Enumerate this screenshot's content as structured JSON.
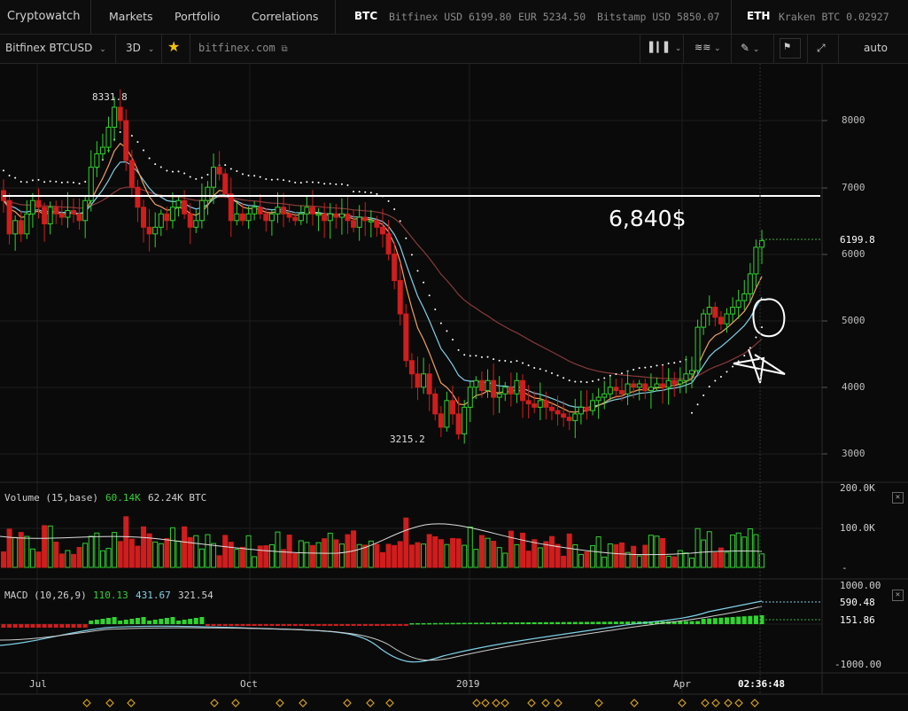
{
  "header": {
    "brand": "Cryptowatch",
    "nav": [
      "Markets",
      "Portfolio",
      "Correlations"
    ],
    "btc": {
      "symbol": "BTC",
      "quotes": [
        "Bitfinex USD 6199.80",
        "EUR 5234.50",
        "Bitstamp USD 5850.07"
      ]
    },
    "eth": {
      "symbol": "ETH",
      "quotes": [
        "Kraken BTC 0.02927"
      ]
    }
  },
  "toolbar": {
    "market": "Bitfinex BTCUSD",
    "period": "3D",
    "domain": "bitfinex.com",
    "scale": "auto"
  },
  "annotations": {
    "resistance_label": "6,840$",
    "high_label": "8331.8",
    "low_label": "3215.2",
    "last_price": "6199.8"
  },
  "volume": {
    "title": "Volume (15,base)",
    "v1": "60.14K",
    "v2": "62.24K BTC",
    "ticks": [
      "200.0K",
      "100.0K",
      "-"
    ]
  },
  "macd": {
    "title": "MACD (10,26,9)",
    "v1": "110.13",
    "v2": "431.67",
    "v3": "321.54",
    "ticks": [
      "1000.00",
      "590.48",
      "151.86",
      "-1000.00"
    ]
  },
  "timeaxis": {
    "labels": [
      "Jul",
      "Oct",
      "2019",
      "Apr"
    ],
    "clock": "02:36:48"
  },
  "colors": {
    "up": "#2fd42f",
    "down": "#d01d1d",
    "background": "#0a0a0a",
    "ema_orange": "#f0a060",
    "ema_blue": "#7fd0e8",
    "ema_red": "#8a3a3a",
    "macd_blue": "#7fd0e8"
  },
  "icons": [
    "chevron-down-icon",
    "star-icon",
    "external-link-icon",
    "candles-icon",
    "indicators-icon",
    "pencil-icon",
    "chart-icon",
    "expand-icon",
    "close-icon"
  ],
  "chart_data": {
    "type": "candlestick",
    "title": "",
    "xlabel": "",
    "ylabel": "",
    "ylim": [
      2800,
      8900
    ],
    "yticks": [
      8000,
      7000,
      6000,
      5000,
      4000,
      3000
    ],
    "xticks": [
      "Jul",
      "Oct",
      "2019",
      "Apr"
    ],
    "horizontal_line": 6840,
    "high": 8331.8,
    "low": 3215.2,
    "last": 6199.8,
    "close_series": [
      6800,
      6300,
      6500,
      6300,
      6600,
      6800,
      6700,
      6450,
      6700,
      6600,
      6550,
      6650,
      6600,
      6500,
      6800,
      7300,
      7500,
      7600,
      7900,
      8200,
      8000,
      7400,
      7000,
      6700,
      6400,
      6300,
      6400,
      6600,
      6500,
      6700,
      6800,
      6600,
      6400,
      6500,
      6800,
      7000,
      7300,
      7200,
      6900,
      6500,
      6600,
      6500,
      6600,
      6700,
      6600,
      6500,
      6600,
      6700,
      6600,
      6550,
      6500,
      6600,
      6700,
      6600,
      6600,
      6500,
      6600,
      6550,
      6600,
      6500,
      6400,
      6550,
      6500,
      6500,
      6400,
      6300,
      6000,
      5600,
      5100,
      4400,
      4200,
      4000,
      4200,
      3900,
      3600,
      3400,
      3800,
      3600,
      3300,
      3700,
      4000,
      4100,
      3950,
      4100,
      3850,
      3900,
      4000,
      3900,
      4100,
      3800,
      3750,
      3700,
      3800,
      3700,
      3650,
      3600,
      3550,
      3500,
      3600,
      3700,
      3650,
      3800,
      3850,
      3900,
      4000,
      3950,
      3900,
      4050,
      4000,
      4050,
      3950,
      4000,
      4050,
      4000,
      4100,
      4050,
      4100,
      4200,
      4250,
      4900,
      5100,
      5200,
      5050,
      4950,
      5100,
      5200,
      5300,
      5400,
      5700,
      6100,
      6199.8
    ],
    "volume_base_k": {
      "v1": 60.14,
      "v2": 62.24
    },
    "macd": {
      "macd": 110.13,
      "signal": 431.67,
      "hist": 321.54
    }
  }
}
